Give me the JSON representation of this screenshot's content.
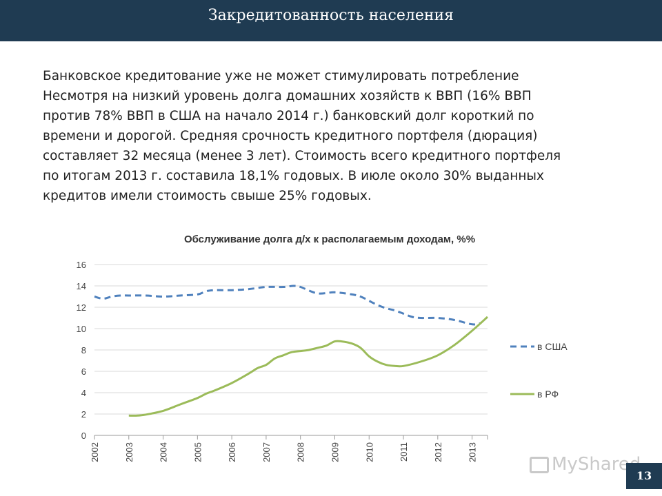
{
  "header": {
    "title": "Закредитованность населения"
  },
  "body": {
    "lines": [
      "Банковское кредитование уже не может стимулировать потребление",
      "Несмотря на низкий уровень долга домашних хозяйств к ВВП (16% ВВП",
      "против 78% ВВП в США на начало 2014 г.) банковский долг короткий по",
      "времени и дорогой. Средняя срочность кредитного портфеля (дюрация)",
      "составляет 32 месяца (менее 3 лет). Стоимость всего кредитного портфеля",
      "по итогам 2013 г. составила 18,1% годовых. В июле около 30% выданных",
      "кредитов имели стоимость свыше 25% годовых."
    ]
  },
  "chart_data": {
    "type": "line",
    "title": "Обслуживание долга д/х к располагаемым доходам, %%",
    "xlabel": "",
    "ylabel": "",
    "ylim": [
      0,
      16
    ],
    "yticks": [
      0,
      2,
      4,
      6,
      8,
      10,
      12,
      14,
      16
    ],
    "xlim": [
      2002,
      2013.45
    ],
    "xticks": [
      "2002",
      "2003",
      "2004",
      "2005",
      "2006",
      "2007",
      "2008",
      "2009",
      "2010",
      "2011",
      "2012",
      "2013"
    ],
    "grid": true,
    "legend": "right",
    "series": [
      {
        "name": "в США",
        "color": "#4f81bd",
        "style": "dashed",
        "x": [
          2002.0,
          2002.25,
          2002.5,
          2002.75,
          2003.0,
          2003.5,
          2004.0,
          2004.5,
          2005.0,
          2005.25,
          2005.5,
          2006.0,
          2006.5,
          2007.0,
          2007.5,
          2007.8,
          2008.0,
          2008.5,
          2009.0,
          2009.5,
          2009.75,
          2010.0,
          2010.25,
          2010.5,
          2010.75,
          2011.0,
          2011.25,
          2011.5,
          2012.0,
          2012.5,
          2013.0,
          2013.25
        ],
        "y": [
          13.0,
          12.8,
          13.0,
          13.1,
          13.1,
          13.1,
          13.0,
          13.1,
          13.2,
          13.5,
          13.6,
          13.6,
          13.7,
          13.9,
          13.9,
          14.0,
          13.9,
          13.3,
          13.4,
          13.2,
          13.0,
          12.6,
          12.2,
          11.9,
          11.7,
          11.4,
          11.1,
          11.0,
          11.0,
          10.8,
          10.4,
          10.5
        ]
      },
      {
        "name": "в РФ",
        "color": "#9bbb59",
        "style": "solid",
        "x": [
          2003.0,
          2003.25,
          2003.5,
          2004.0,
          2004.5,
          2005.0,
          2005.25,
          2005.5,
          2006.0,
          2006.5,
          2006.75,
          2007.0,
          2007.25,
          2007.5,
          2007.75,
          2008.0,
          2008.25,
          2008.5,
          2008.75,
          2009.0,
          2009.2,
          2009.5,
          2009.75,
          2010.0,
          2010.25,
          2010.5,
          2010.75,
          2011.0,
          2011.5,
          2012.0,
          2012.5,
          2013.0,
          2013.45
        ],
        "y": [
          1.85,
          1.85,
          1.95,
          2.3,
          2.9,
          3.5,
          3.9,
          4.2,
          4.9,
          5.8,
          6.3,
          6.6,
          7.2,
          7.5,
          7.8,
          7.9,
          8.0,
          8.2,
          8.4,
          8.8,
          8.8,
          8.6,
          8.2,
          7.4,
          6.9,
          6.6,
          6.5,
          6.5,
          6.9,
          7.5,
          8.5,
          9.8,
          11.1
        ]
      }
    ]
  },
  "page_number": "13",
  "watermark": {
    "text": "MyShared"
  }
}
